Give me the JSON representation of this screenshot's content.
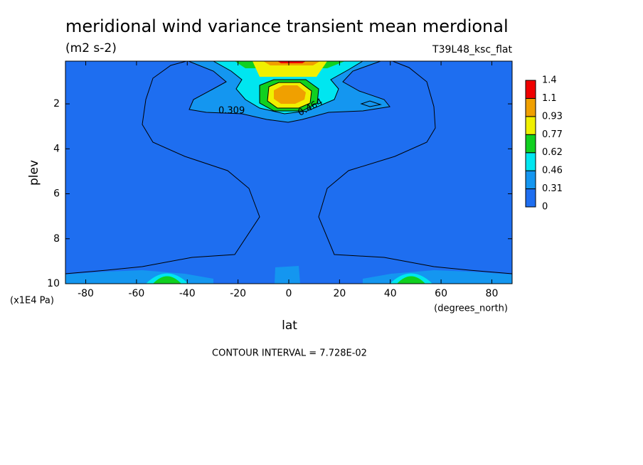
{
  "chart_data": {
    "type": "contour",
    "title": "meridional wind variance transient mean merdional",
    "units": "(m2 s-2)",
    "experiment": "T39L48_ksc_flat",
    "xlabel": "lat",
    "xunits": "(degrees_north)",
    "ylabel": "plev",
    "yunits": "(x1E4 Pa)",
    "xlim": [
      -88,
      88
    ],
    "xticks": [
      -80,
      -60,
      -40,
      -20,
      0,
      20,
      40,
      60,
      80
    ],
    "ylim": [
      10,
      0.1
    ],
    "yticks": [
      2,
      4,
      6,
      8,
      10
    ],
    "levels": [
      0,
      0.31,
      0.46,
      0.62,
      0.77,
      0.93,
      1.1,
      1.4
    ],
    "colors": [
      "#1e6ef0",
      "#1496f0",
      "#00e6f0",
      "#10d020",
      "#f0f000",
      "#f0a000",
      "#f00000"
    ],
    "contour_labels": [
      0.309,
      0.464
    ],
    "footer": "CONTOUR INTERVAL = 7.728E-02"
  }
}
